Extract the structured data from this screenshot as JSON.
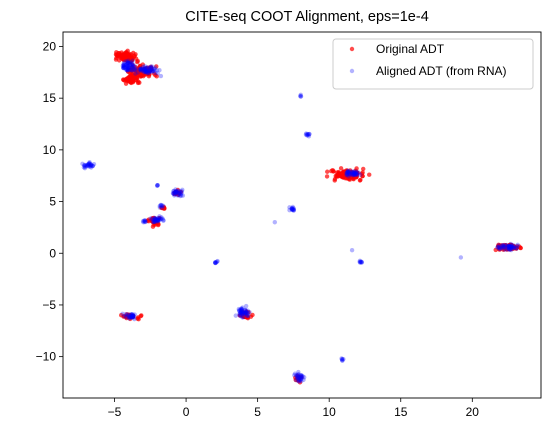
{
  "chart_data": {
    "type": "scatter",
    "title": "CITE-seq COOT Alignment, eps=1e-4",
    "xlabel": "",
    "ylabel": "",
    "xlim": [
      -8.6,
      24.8
    ],
    "ylim": [
      -14.0,
      21.4
    ],
    "x_ticks": [
      -5,
      0,
      5,
      10,
      15,
      20
    ],
    "y_ticks": [
      -10,
      -5,
      0,
      5,
      10,
      15,
      20
    ],
    "grid": false,
    "legend": {
      "placement": "top-right",
      "entries": [
        "Original ADT",
        "Aligned ADT (from RNA)"
      ]
    },
    "series": [
      {
        "name": "Original ADT",
        "color": "#ff0000",
        "alpha": 0.7,
        "clusters": [
          {
            "cx": -4.2,
            "cy": 19.0,
            "rx": 0.7,
            "ry": 0.5,
            "n": 90
          },
          {
            "cx": -3.1,
            "cy": 17.6,
            "rx": 0.9,
            "ry": 0.5,
            "n": 80
          },
          {
            "cx": -3.8,
            "cy": 16.9,
            "rx": 0.6,
            "ry": 0.4,
            "n": 50
          },
          {
            "cx": 11.3,
            "cy": 7.6,
            "rx": 1.1,
            "ry": 0.5,
            "n": 110
          },
          {
            "cx": 22.5,
            "cy": 0.6,
            "rx": 0.8,
            "ry": 0.25,
            "n": 70
          },
          {
            "cx": -3.9,
            "cy": -6.1,
            "rx": 0.5,
            "ry": 0.2,
            "n": 30
          },
          {
            "cx": 4.1,
            "cy": -6.0,
            "rx": 0.4,
            "ry": 0.3,
            "n": 25
          },
          {
            "cx": -2.3,
            "cy": 3.1,
            "rx": 0.4,
            "ry": 0.4,
            "n": 25
          },
          {
            "cx": -1.6,
            "cy": 4.4,
            "rx": 0.15,
            "ry": 0.15,
            "n": 6
          },
          {
            "cx": 7.9,
            "cy": -12.0,
            "rx": 0.25,
            "ry": 0.3,
            "n": 10
          },
          {
            "cx": -0.6,
            "cy": 5.9,
            "rx": 0.2,
            "ry": 0.25,
            "n": 10
          }
        ]
      },
      {
        "name": "Aligned ADT (from RNA)",
        "color": "#0000ff",
        "alpha": 0.3,
        "clusters": [
          {
            "cx": -4.0,
            "cy": 18.1,
            "rx": 0.4,
            "ry": 0.5,
            "n": 60
          },
          {
            "cx": -2.8,
            "cy": 17.7,
            "rx": 0.8,
            "ry": 0.4,
            "n": 60
          },
          {
            "cx": -6.8,
            "cy": 8.5,
            "rx": 0.35,
            "ry": 0.25,
            "n": 30
          },
          {
            "cx": 8.0,
            "cy": 15.2,
            "rx": 0.05,
            "ry": 0.08,
            "n": 4
          },
          {
            "cx": 8.5,
            "cy": 11.5,
            "rx": 0.12,
            "ry": 0.15,
            "n": 10
          },
          {
            "cx": 11.6,
            "cy": 7.7,
            "rx": 0.5,
            "ry": 0.3,
            "n": 40
          },
          {
            "cx": -2.0,
            "cy": 6.6,
            "rx": 0.05,
            "ry": 0.08,
            "n": 4
          },
          {
            "cx": -0.6,
            "cy": 5.9,
            "rx": 0.3,
            "ry": 0.3,
            "n": 30
          },
          {
            "cx": -1.7,
            "cy": 4.5,
            "rx": 0.15,
            "ry": 0.2,
            "n": 8
          },
          {
            "cx": -2.9,
            "cy": 3.1,
            "rx": 0.15,
            "ry": 0.15,
            "n": 8
          },
          {
            "cx": -2.0,
            "cy": 3.2,
            "rx": 0.45,
            "ry": 0.35,
            "n": 35
          },
          {
            "cx": 7.4,
            "cy": 4.3,
            "rx": 0.2,
            "ry": 0.2,
            "n": 15
          },
          {
            "cx": 6.2,
            "cy": 3.0,
            "rx": 0.03,
            "ry": 0.03,
            "n": 1
          },
          {
            "cx": 11.6,
            "cy": 0.3,
            "rx": 0.03,
            "ry": 0.03,
            "n": 1
          },
          {
            "cx": 19.2,
            "cy": -0.4,
            "rx": 0.03,
            "ry": 0.03,
            "n": 1
          },
          {
            "cx": 22.5,
            "cy": 0.6,
            "rx": 0.7,
            "ry": 0.25,
            "n": 50
          },
          {
            "cx": 2.1,
            "cy": -0.9,
            "rx": 0.12,
            "ry": 0.1,
            "n": 8
          },
          {
            "cx": 12.2,
            "cy": -0.8,
            "rx": 0.15,
            "ry": 0.12,
            "n": 8
          },
          {
            "cx": -3.9,
            "cy": -6.1,
            "rx": 0.45,
            "ry": 0.25,
            "n": 30
          },
          {
            "cx": 4.0,
            "cy": -5.6,
            "rx": 0.4,
            "ry": 0.5,
            "n": 45
          },
          {
            "cx": 7.9,
            "cy": -12.0,
            "rx": 0.3,
            "ry": 0.4,
            "n": 30
          },
          {
            "cx": 10.9,
            "cy": -10.3,
            "rx": 0.1,
            "ry": 0.12,
            "n": 6
          }
        ]
      }
    ]
  }
}
